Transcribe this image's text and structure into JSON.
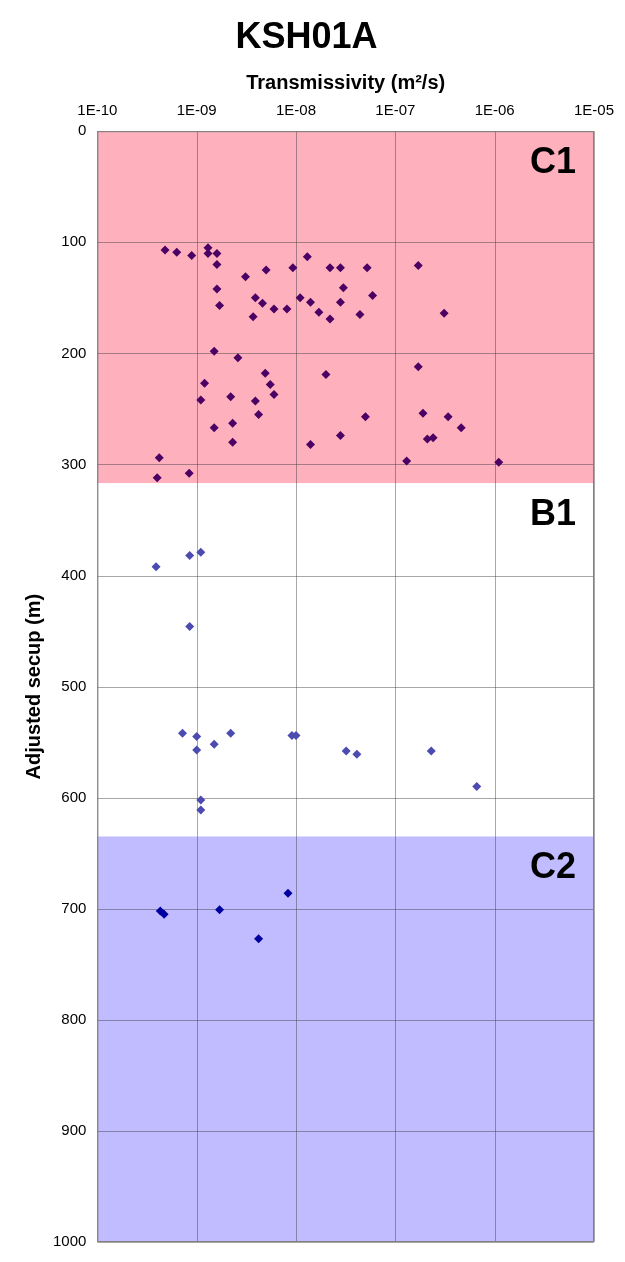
{
  "chart_data": {
    "type": "scatter",
    "title": "KSH01A",
    "xlabel": "Transmissivity (m²/s)",
    "ylabel": "Adjusted secup (m)",
    "log": "x",
    "grid": true,
    "legend": false,
    "marker": "diamond",
    "xlim": [
      1e-10,
      1e-05
    ],
    "xticks": [
      {
        "value": 1e-10,
        "label": "1E-10"
      },
      {
        "value": 1e-09,
        "label": "1E-09"
      },
      {
        "value": 1e-08,
        "label": "1E-08"
      },
      {
        "value": 1e-07,
        "label": "1E-07"
      },
      {
        "value": 1e-06,
        "label": "1E-06"
      },
      {
        "value": 1e-05,
        "label": "1E-05"
      }
    ],
    "ylim": [
      1000,
      0
    ],
    "yticks": [
      0,
      100,
      200,
      300,
      400,
      500,
      600,
      700,
      800,
      900,
      1000
    ],
    "bands": [
      {
        "axis": "y",
        "from": 0,
        "to": 317,
        "label": "C1",
        "color": "#ffb0bd"
      },
      {
        "axis": "y",
        "from": 317,
        "to": 635,
        "label": "B1",
        "color": "#ffffff"
      },
      {
        "axis": "y",
        "from": 635,
        "to": 1000,
        "label": "C2",
        "color": "#c0bcff"
      }
    ],
    "series": [
      {
        "color": "#4b0063",
        "x": [
          4.8e-10,
          6.3e-10,
          8.9e-10,
          1.3e-09,
          1.3e-09,
          1.6e-09,
          1.6e-09,
          1.6e-09,
          1.7e-09,
          3.1e-09,
          5e-09,
          9.3e-09,
          1.3e-08,
          2.2e-08,
          2.8e-08,
          5.2e-08,
          1.7e-07,
          3.9e-09,
          4.6e-09,
          3.7e-09,
          6e-09,
          8.1e-09,
          1.1e-08,
          1.4e-08,
          1.7e-08,
          2.2e-08,
          2.8e-08,
          3e-08,
          5.9e-08,
          4.4e-08,
          3.1e-07,
          1.5e-09,
          2.6e-09,
          2e-08,
          1.7e-07,
          4.9e-09,
          1.2e-09,
          5.5e-09,
          6e-09,
          1.1e-09,
          2.2e-09,
          3.9e-09,
          4.2e-09,
          1.5e-09,
          2.3e-09,
          2.3e-09,
          5e-08,
          1.9e-07,
          3.4e-07,
          4.6e-07,
          2.8e-08,
          2.1e-07,
          2.4e-07,
          1.4e-08,
          1.3e-07,
          1.1e-06,
          4.2e-10,
          8.4e-10,
          4e-10
        ],
        "values": [
          107,
          109,
          112,
          105,
          110,
          110,
          120,
          142,
          157,
          131,
          125,
          123,
          113,
          123,
          123,
          123,
          121,
          150,
          155,
          167,
          160,
          160,
          150,
          154,
          163,
          169,
          154,
          141,
          148,
          165,
          164,
          198,
          204,
          219,
          212,
          218,
          227,
          228,
          237,
          242,
          239,
          243,
          255,
          267,
          263,
          280,
          257,
          254,
          257,
          267,
          274,
          277,
          276,
          282,
          297,
          298,
          294,
          308,
          312
        ]
      },
      {
        "color": "#4b4bb0",
        "x": [
          3.9e-10,
          8.5e-10,
          1.1e-09,
          8.5e-10,
          7.2e-10,
          1e-09,
          1e-09,
          1.5e-09,
          2.2e-09,
          9.1e-09,
          1e-08,
          3.2e-08,
          4.1e-08,
          2.3e-07,
          6.6e-07,
          1.1e-09,
          1.1e-09
        ],
        "values": [
          392,
          382,
          379,
          446,
          542,
          545,
          557,
          552,
          542,
          544,
          544,
          558,
          561,
          558,
          590,
          602,
          611
        ]
      },
      {
        "color": "#0000a0",
        "x": [
          4.3e-10,
          4.7e-10,
          1.7e-09,
          8.3e-09,
          4.2e-09
        ],
        "values": [
          702,
          705,
          701,
          686,
          727
        ]
      }
    ]
  }
}
